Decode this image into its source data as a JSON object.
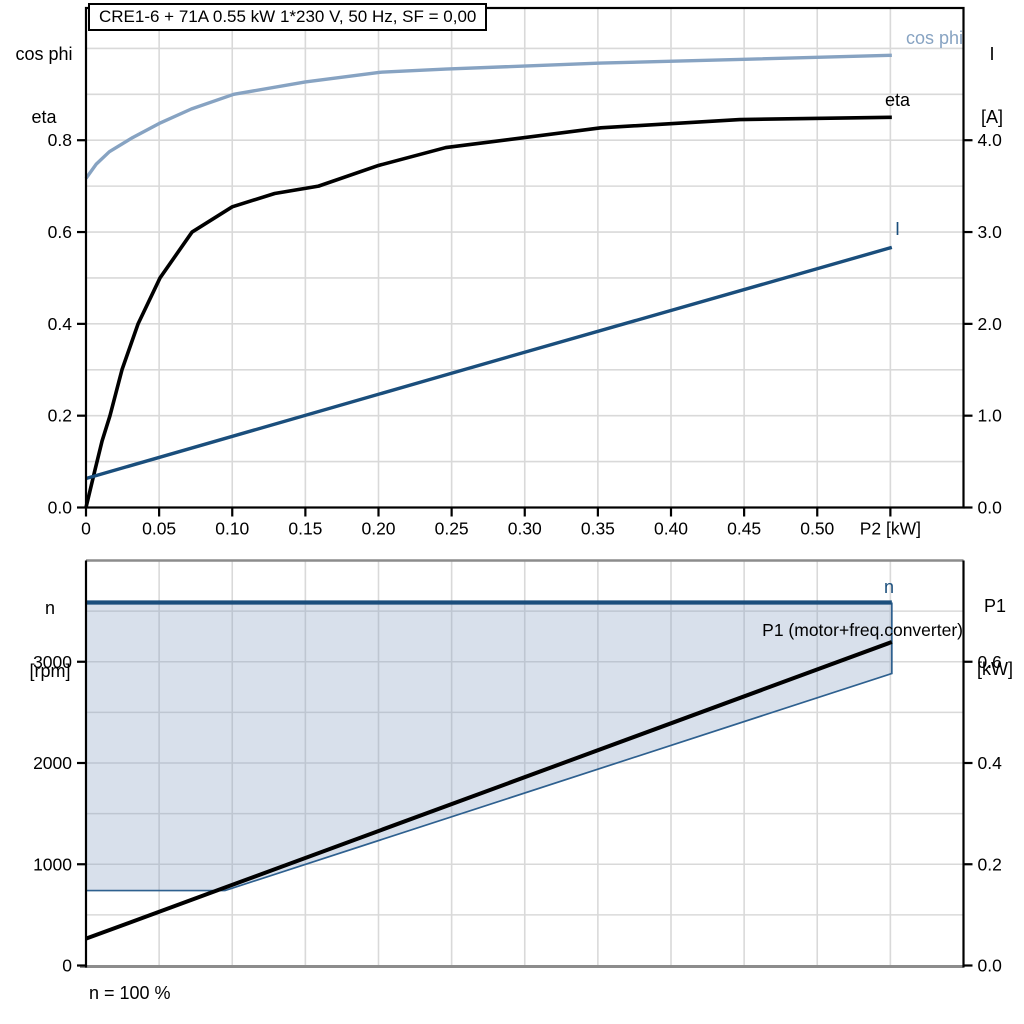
{
  "header": {
    "title": "CRE1-6 + 71A   0.55 kW   1*230 V, 50 Hz, SF = 0,00"
  },
  "colors": {
    "curve_blue_dark": "#1A4E7C",
    "curve_blue_light": "#87A3C2",
    "envelope_fill": "rgba(137,162,193,0.33)",
    "envelope_border": "#2E608F",
    "grid": "#D9D9D9",
    "axis_black": "#000000",
    "axis_gray": "#8C8C8C",
    "eta_black": "#000000"
  },
  "chart_data": [
    {
      "type": "line",
      "title": "CRE1-6 + 71A   0.55 kW   1*230 V, 50 Hz, SF = 0,00",
      "x_axis": {
        "label": "P2 [kW]",
        "range": [
          0,
          0.6
        ],
        "ticks": [
          {
            "label": "0",
            "value": 0
          },
          {
            "label": "0.05",
            "value": 0.05
          },
          {
            "label": "0.10",
            "value": 0.1
          },
          {
            "label": "0.15",
            "value": 0.15
          },
          {
            "label": "0.20",
            "value": 0.2
          },
          {
            "label": "0.25",
            "value": 0.25
          },
          {
            "label": "0.30",
            "value": 0.3
          },
          {
            "label": "0.35",
            "value": 0.35
          },
          {
            "label": "0.40",
            "value": 0.4
          },
          {
            "label": "0.45",
            "value": 0.45
          },
          {
            "label": "0.50",
            "value": 0.5
          },
          {
            "label": "P2 [kW]",
            "value": 0.55
          }
        ]
      },
      "left_axis": {
        "title_lines": [
          "cos phi",
          "eta"
        ],
        "range": [
          0,
          1.088
        ],
        "ticks": [
          {
            "label": "0.8",
            "value": 0.8
          },
          {
            "label": "0.6",
            "value": 0.6
          },
          {
            "label": "0.4",
            "value": 0.4
          },
          {
            "label": "0.2",
            "value": 0.2
          },
          {
            "label": "0.0",
            "value": 0.0
          }
        ]
      },
      "right_axis": {
        "title_lines": [
          "I",
          "[A]"
        ],
        "range": [
          0,
          5.44
        ],
        "ticks": [
          {
            "label": "4.0",
            "value": 4.0
          },
          {
            "label": "3.0",
            "value": 3.0
          },
          {
            "label": "2.0",
            "value": 2.0
          },
          {
            "label": "1.0",
            "value": 1.0
          },
          {
            "label": "0.0",
            "value": 0.0
          }
        ]
      },
      "grid": {
        "x_values": [
          0.05,
          0.1,
          0.15,
          0.2,
          0.25,
          0.3,
          0.35,
          0.4,
          0.45,
          0.5,
          0.55
        ],
        "y_axis": "left",
        "y_values": [
          0.1,
          0.2,
          0.3,
          0.4,
          0.5,
          0.6,
          0.7,
          0.8,
          0.9,
          1.0
        ]
      },
      "series": [
        {
          "name": "cos phi",
          "axis": "left",
          "color": "#87A3C2",
          "width": 3.4,
          "points": [
            [
              0,
              0.717
            ],
            [
              0.007,
              0.748
            ],
            [
              0.016,
              0.775
            ],
            [
              0.032,
              0.806
            ],
            [
              0.051,
              0.838
            ],
            [
              0.072,
              0.868
            ],
            [
              0.101,
              0.9
            ],
            [
              0.15,
              0.927
            ],
            [
              0.201,
              0.948
            ],
            [
              0.246,
              0.955
            ],
            [
              0.352,
              0.968
            ],
            [
              0.447,
              0.976
            ],
            [
              0.551,
              0.985
            ]
          ]
        },
        {
          "name": "eta",
          "axis": "left",
          "color": "#000000",
          "width": 3.6,
          "points": [
            [
              0,
              0
            ],
            [
              0.006,
              0.08
            ],
            [
              0.011,
              0.145
            ],
            [
              0.0164,
              0.2
            ],
            [
              0.0246,
              0.3
            ],
            [
              0.0356,
              0.4
            ],
            [
              0.0506,
              0.5
            ],
            [
              0.0725,
              0.6
            ],
            [
              0.1,
              0.655
            ],
            [
              0.129,
              0.684
            ],
            [
              0.159,
              0.7
            ],
            [
              0.2,
              0.745
            ],
            [
              0.246,
              0.784
            ],
            [
              0.352,
              0.827
            ],
            [
              0.447,
              0.845
            ],
            [
              0.551,
              0.85
            ]
          ]
        },
        {
          "name": "I",
          "axis": "right",
          "color": "#1A4E7C",
          "width": 3.4,
          "points": [
            [
              0,
              0.316
            ],
            [
              0.28,
              1.6
            ],
            [
              0.551,
              2.833
            ]
          ]
        }
      ]
    },
    {
      "type": "line",
      "x_axis": {
        "label": "",
        "range": [
          0,
          0.6
        ],
        "ticks": []
      },
      "left_axis": {
        "title_lines": [
          "n",
          "[rpm]"
        ],
        "range": [
          0,
          4000
        ],
        "ticks": [
          {
            "label": "3000",
            "value": 3000
          },
          {
            "label": "2000",
            "value": 2000
          },
          {
            "label": "1000",
            "value": 1000
          },
          {
            "label": "0",
            "value": 0
          }
        ]
      },
      "right_axis": {
        "title_lines": [
          "P1",
          "[kW]"
        ],
        "range": [
          0,
          0.8
        ],
        "ticks": [
          {
            "label": "0.6",
            "value": 0.6
          },
          {
            "label": "0.4",
            "value": 0.4
          },
          {
            "label": "0.2",
            "value": 0.2
          },
          {
            "label": "0.0",
            "value": 0.0
          }
        ]
      },
      "grid": {
        "x_values": [
          0.05,
          0.1,
          0.15,
          0.2,
          0.25,
          0.3,
          0.35,
          0.4,
          0.45,
          0.5,
          0.55
        ],
        "y_axis": "right",
        "y_values": [
          0.1,
          0.2,
          0.3,
          0.4,
          0.5,
          0.6,
          0.7
        ]
      },
      "series": [
        {
          "name": "speed range envelope",
          "type": "area",
          "axis": "left",
          "fill": "rgba(137,162,193,0.33)",
          "border": "#2E608F",
          "border_width": 1.7,
          "top_points": [
            [
              0,
              3585
            ],
            [
              0.551,
              3585
            ]
          ],
          "bottom_points": [
            [
              0,
              740
            ],
            [
              0.095,
              740
            ],
            [
              0.551,
              2884
            ]
          ]
        },
        {
          "name": "n",
          "axis": "left",
          "color": "#1A4E7C",
          "width": 4.2,
          "points": [
            [
              0,
              3585
            ],
            [
              0.551,
              3585
            ]
          ]
        },
        {
          "name": "P1 (motor+freq.converter)",
          "axis": "right",
          "color": "#000000",
          "width": 4.0,
          "points": [
            [
              0,
              0.053
            ],
            [
              0.551,
              0.639
            ]
          ]
        }
      ],
      "note": "n = 100 %"
    }
  ]
}
